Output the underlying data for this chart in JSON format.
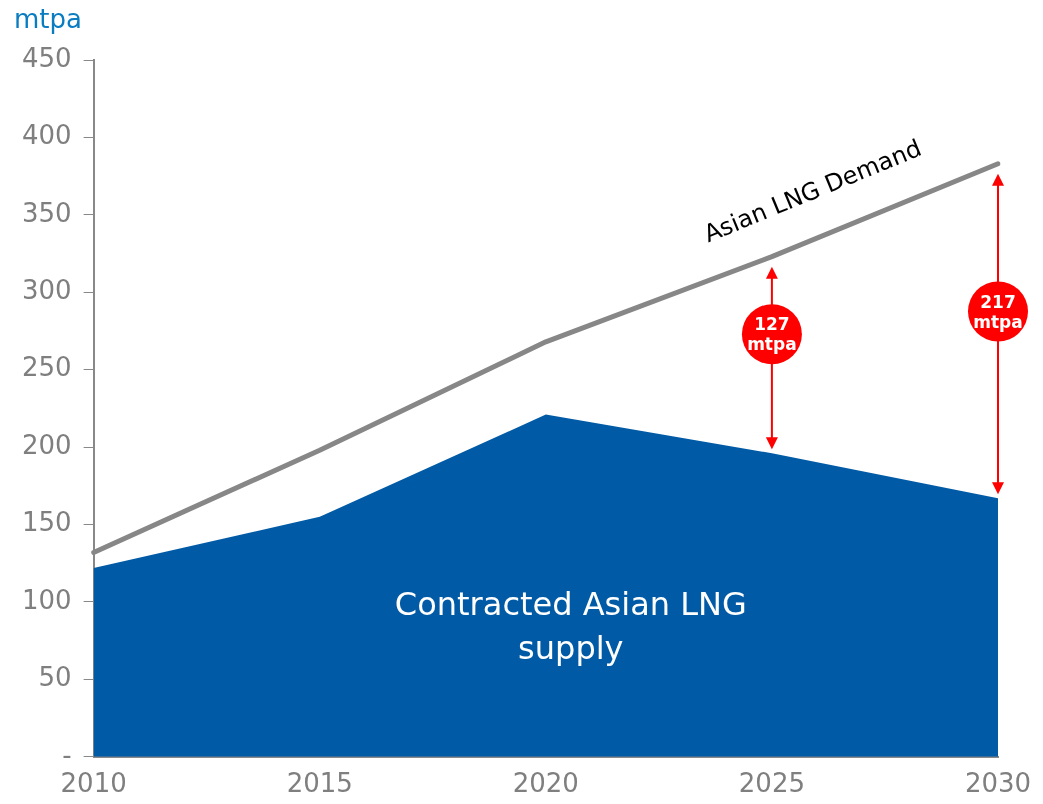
{
  "chart_data": {
    "type": "area",
    "ylabel": "mtpa",
    "categories": [
      "2010",
      "2015",
      "2020",
      "2025",
      "2030"
    ],
    "series": [
      {
        "name": "Contracted Asian LNG supply",
        "type": "area",
        "color": "#005aa5",
        "values": [
          122,
          155,
          221,
          196,
          167
        ]
      },
      {
        "name": "Asian LNG Demand",
        "type": "line",
        "color": "#878787",
        "values": [
          132,
          198,
          268,
          323,
          383
        ]
      }
    ],
    "ylim": [
      0,
      450
    ],
    "yticks": [
      {
        "value": 0,
        "label": "-"
      },
      50,
      100,
      150,
      200,
      250,
      300,
      350,
      400,
      450
    ],
    "annotations": [
      "127 mtpa",
      "217 mtpa"
    ],
    "grid": false,
    "legend": false,
    "marker": "none",
    "line_style": "solid"
  }
}
